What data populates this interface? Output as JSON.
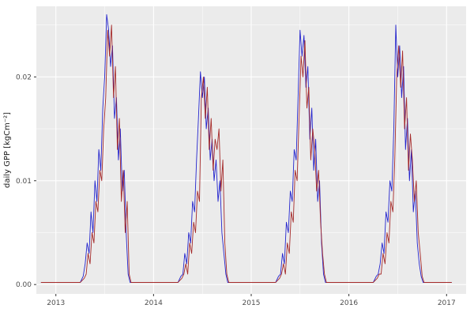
{
  "chart_data": {
    "type": "line",
    "title": "",
    "xlabel": "",
    "ylabel": "daily GPP [kgCm⁻²]",
    "legend": "none",
    "grid": "on",
    "panel_background": "#EBEBEB",
    "grid_color": "#FFFFFF",
    "tick_color": "#333333",
    "tick_label_color": "#4D4D4D",
    "xlim": [
      2012.8,
      2017.2
    ],
    "ylim": [
      -0.0009,
      0.0268
    ],
    "x_ticks": [
      2013,
      2014,
      2015,
      2016,
      2017
    ],
    "x_tick_labels": [
      "2013",
      "2014",
      "2015",
      "2016",
      "2017"
    ],
    "x_minor_ticks": [
      2013.5,
      2014.5,
      2015.5,
      2016.5
    ],
    "y_ticks": [
      0,
      0.01,
      0.02
    ],
    "y_tick_labels": [
      "0.00",
      "0.01",
      "0.02"
    ],
    "y_minor_ticks": [
      0.005,
      0.015,
      0.025
    ],
    "series": [
      {
        "name": "series-blue",
        "color": "#2525CD",
        "points": [
          [
            2012.85,
            0.0002
          ],
          [
            2013.25,
            0.0002
          ],
          [
            2013.28,
            0.0008
          ],
          [
            2013.3,
            0.002
          ],
          [
            2013.32,
            0.004
          ],
          [
            2013.34,
            0.003
          ],
          [
            2013.36,
            0.007
          ],
          [
            2013.38,
            0.005
          ],
          [
            2013.4,
            0.01
          ],
          [
            2013.42,
            0.008
          ],
          [
            2013.44,
            0.013
          ],
          [
            2013.46,
            0.011
          ],
          [
            2013.48,
            0.017
          ],
          [
            2013.5,
            0.02
          ],
          [
            2013.52,
            0.026
          ],
          [
            2013.54,
            0.0245
          ],
          [
            2013.56,
            0.021
          ],
          [
            2013.58,
            0.023
          ],
          [
            2013.6,
            0.016
          ],
          [
            2013.62,
            0.018
          ],
          [
            2013.64,
            0.012
          ],
          [
            2013.66,
            0.015
          ],
          [
            2013.68,
            0.009
          ],
          [
            2013.7,
            0.011
          ],
          [
            2013.72,
            0.005
          ],
          [
            2013.74,
            0.001
          ],
          [
            2013.76,
            0.0002
          ],
          [
            2014.25,
            0.0002
          ],
          [
            2014.28,
            0.0008
          ],
          [
            2014.3,
            0.001
          ],
          [
            2014.32,
            0.003
          ],
          [
            2014.34,
            0.002
          ],
          [
            2014.36,
            0.005
          ],
          [
            2014.38,
            0.004
          ],
          [
            2014.4,
            0.008
          ],
          [
            2014.42,
            0.007
          ],
          [
            2014.44,
            0.012
          ],
          [
            2014.46,
            0.016
          ],
          [
            2014.48,
            0.0205
          ],
          [
            2014.5,
            0.018
          ],
          [
            2014.52,
            0.02
          ],
          [
            2014.54,
            0.015
          ],
          [
            2014.56,
            0.017
          ],
          [
            2014.58,
            0.012
          ],
          [
            2014.6,
            0.014
          ],
          [
            2014.62,
            0.01
          ],
          [
            2014.64,
            0.012
          ],
          [
            2014.66,
            0.008
          ],
          [
            2014.68,
            0.01
          ],
          [
            2014.7,
            0.005
          ],
          [
            2014.72,
            0.003
          ],
          [
            2014.74,
            0.001
          ],
          [
            2014.76,
            0.0002
          ],
          [
            2015.25,
            0.0002
          ],
          [
            2015.28,
            0.0008
          ],
          [
            2015.3,
            0.001
          ],
          [
            2015.32,
            0.003
          ],
          [
            2015.34,
            0.002
          ],
          [
            2015.36,
            0.006
          ],
          [
            2015.38,
            0.005
          ],
          [
            2015.4,
            0.009
          ],
          [
            2015.42,
            0.008
          ],
          [
            2015.44,
            0.013
          ],
          [
            2015.46,
            0.012
          ],
          [
            2015.48,
            0.018
          ],
          [
            2015.5,
            0.0245
          ],
          [
            2015.52,
            0.022
          ],
          [
            2015.54,
            0.024
          ],
          [
            2015.56,
            0.019
          ],
          [
            2015.58,
            0.021
          ],
          [
            2015.6,
            0.014
          ],
          [
            2015.62,
            0.017
          ],
          [
            2015.64,
            0.011
          ],
          [
            2015.66,
            0.014
          ],
          [
            2015.68,
            0.008
          ],
          [
            2015.7,
            0.01
          ],
          [
            2015.72,
            0.004
          ],
          [
            2015.74,
            0.001
          ],
          [
            2015.76,
            0.0002
          ],
          [
            2016.25,
            0.0002
          ],
          [
            2016.28,
            0.0008
          ],
          [
            2016.3,
            0.001
          ],
          [
            2016.32,
            0.002
          ],
          [
            2016.34,
            0.004
          ],
          [
            2016.36,
            0.003
          ],
          [
            2016.38,
            0.007
          ],
          [
            2016.4,
            0.006
          ],
          [
            2016.42,
            0.01
          ],
          [
            2016.44,
            0.009
          ],
          [
            2016.46,
            0.015
          ],
          [
            2016.48,
            0.025
          ],
          [
            2016.5,
            0.02
          ],
          [
            2016.52,
            0.023
          ],
          [
            2016.54,
            0.018
          ],
          [
            2016.56,
            0.021
          ],
          [
            2016.58,
            0.013
          ],
          [
            2016.6,
            0.016
          ],
          [
            2016.62,
            0.01
          ],
          [
            2016.64,
            0.013
          ],
          [
            2016.66,
            0.007
          ],
          [
            2016.68,
            0.009
          ],
          [
            2016.7,
            0.004
          ],
          [
            2016.72,
            0.002
          ],
          [
            2016.74,
            0.0008
          ],
          [
            2016.76,
            0.0002
          ],
          [
            2017.05,
            0.0002
          ]
        ]
      },
      {
        "name": "series-darkred",
        "color": "#A52A2A",
        "points": [
          [
            2012.85,
            0.0002
          ],
          [
            2013.25,
            0.0002
          ],
          [
            2013.29,
            0.0006
          ],
          [
            2013.31,
            0.001
          ],
          [
            2013.33,
            0.003
          ],
          [
            2013.35,
            0.002
          ],
          [
            2013.37,
            0.005
          ],
          [
            2013.39,
            0.004
          ],
          [
            2013.41,
            0.008
          ],
          [
            2013.43,
            0.007
          ],
          [
            2013.45,
            0.011
          ],
          [
            2013.47,
            0.01
          ],
          [
            2013.49,
            0.015
          ],
          [
            2013.51,
            0.018
          ],
          [
            2013.53,
            0.0245
          ],
          [
            2013.55,
            0.022
          ],
          [
            2013.57,
            0.025
          ],
          [
            2013.59,
            0.018
          ],
          [
            2013.61,
            0.021
          ],
          [
            2013.63,
            0.013
          ],
          [
            2013.65,
            0.016
          ],
          [
            2013.67,
            0.008
          ],
          [
            2013.69,
            0.011
          ],
          [
            2013.71,
            0.005
          ],
          [
            2013.73,
            0.008
          ],
          [
            2013.75,
            0.001
          ],
          [
            2013.77,
            0.0002
          ],
          [
            2014.25,
            0.0002
          ],
          [
            2014.29,
            0.0006
          ],
          [
            2014.31,
            0.001
          ],
          [
            2014.33,
            0.002
          ],
          [
            2014.35,
            0.001
          ],
          [
            2014.37,
            0.004
          ],
          [
            2014.39,
            0.003
          ],
          [
            2014.41,
            0.006
          ],
          [
            2014.43,
            0.005
          ],
          [
            2014.45,
            0.009
          ],
          [
            2014.47,
            0.008
          ],
          [
            2014.49,
            0.018
          ],
          [
            2014.51,
            0.02
          ],
          [
            2014.53,
            0.016
          ],
          [
            2014.55,
            0.019
          ],
          [
            2014.57,
            0.013
          ],
          [
            2014.59,
            0.016
          ],
          [
            2014.61,
            0.011
          ],
          [
            2014.63,
            0.014
          ],
          [
            2014.65,
            0.013
          ],
          [
            2014.67,
            0.015
          ],
          [
            2014.69,
            0.009
          ],
          [
            2014.71,
            0.012
          ],
          [
            2014.73,
            0.004
          ],
          [
            2014.75,
            0.001
          ],
          [
            2014.77,
            0.0002
          ],
          [
            2015.25,
            0.0002
          ],
          [
            2015.29,
            0.0006
          ],
          [
            2015.31,
            0.001
          ],
          [
            2015.33,
            0.002
          ],
          [
            2015.35,
            0.001
          ],
          [
            2015.37,
            0.004
          ],
          [
            2015.39,
            0.003
          ],
          [
            2015.41,
            0.007
          ],
          [
            2015.43,
            0.006
          ],
          [
            2015.45,
            0.011
          ],
          [
            2015.47,
            0.01
          ],
          [
            2015.49,
            0.016
          ],
          [
            2015.51,
            0.022
          ],
          [
            2015.53,
            0.02
          ],
          [
            2015.55,
            0.0235
          ],
          [
            2015.57,
            0.017
          ],
          [
            2015.59,
            0.019
          ],
          [
            2015.61,
            0.012
          ],
          [
            2015.63,
            0.015
          ],
          [
            2015.65,
            0.013
          ],
          [
            2015.67,
            0.009
          ],
          [
            2015.69,
            0.011
          ],
          [
            2015.71,
            0.006
          ],
          [
            2015.73,
            0.003
          ],
          [
            2015.75,
            0.001
          ],
          [
            2015.77,
            0.0002
          ],
          [
            2016.25,
            0.0002
          ],
          [
            2016.29,
            0.0006
          ],
          [
            2016.31,
            0.001
          ],
          [
            2016.33,
            0.001
          ],
          [
            2016.35,
            0.003
          ],
          [
            2016.37,
            0.002
          ],
          [
            2016.39,
            0.005
          ],
          [
            2016.41,
            0.004
          ],
          [
            2016.43,
            0.008
          ],
          [
            2016.45,
            0.007
          ],
          [
            2016.47,
            0.012
          ],
          [
            2016.49,
            0.02
          ],
          [
            2016.51,
            0.023
          ],
          [
            2016.53,
            0.019
          ],
          [
            2016.55,
            0.0225
          ],
          [
            2016.57,
            0.015
          ],
          [
            2016.59,
            0.018
          ],
          [
            2016.61,
            0.011
          ],
          [
            2016.63,
            0.0145
          ],
          [
            2016.65,
            0.012
          ],
          [
            2016.67,
            0.008
          ],
          [
            2016.69,
            0.01
          ],
          [
            2016.71,
            0.005
          ],
          [
            2016.73,
            0.003
          ],
          [
            2016.75,
            0.0008
          ],
          [
            2016.77,
            0.0002
          ],
          [
            2017.05,
            0.0002
          ]
        ]
      }
    ]
  }
}
